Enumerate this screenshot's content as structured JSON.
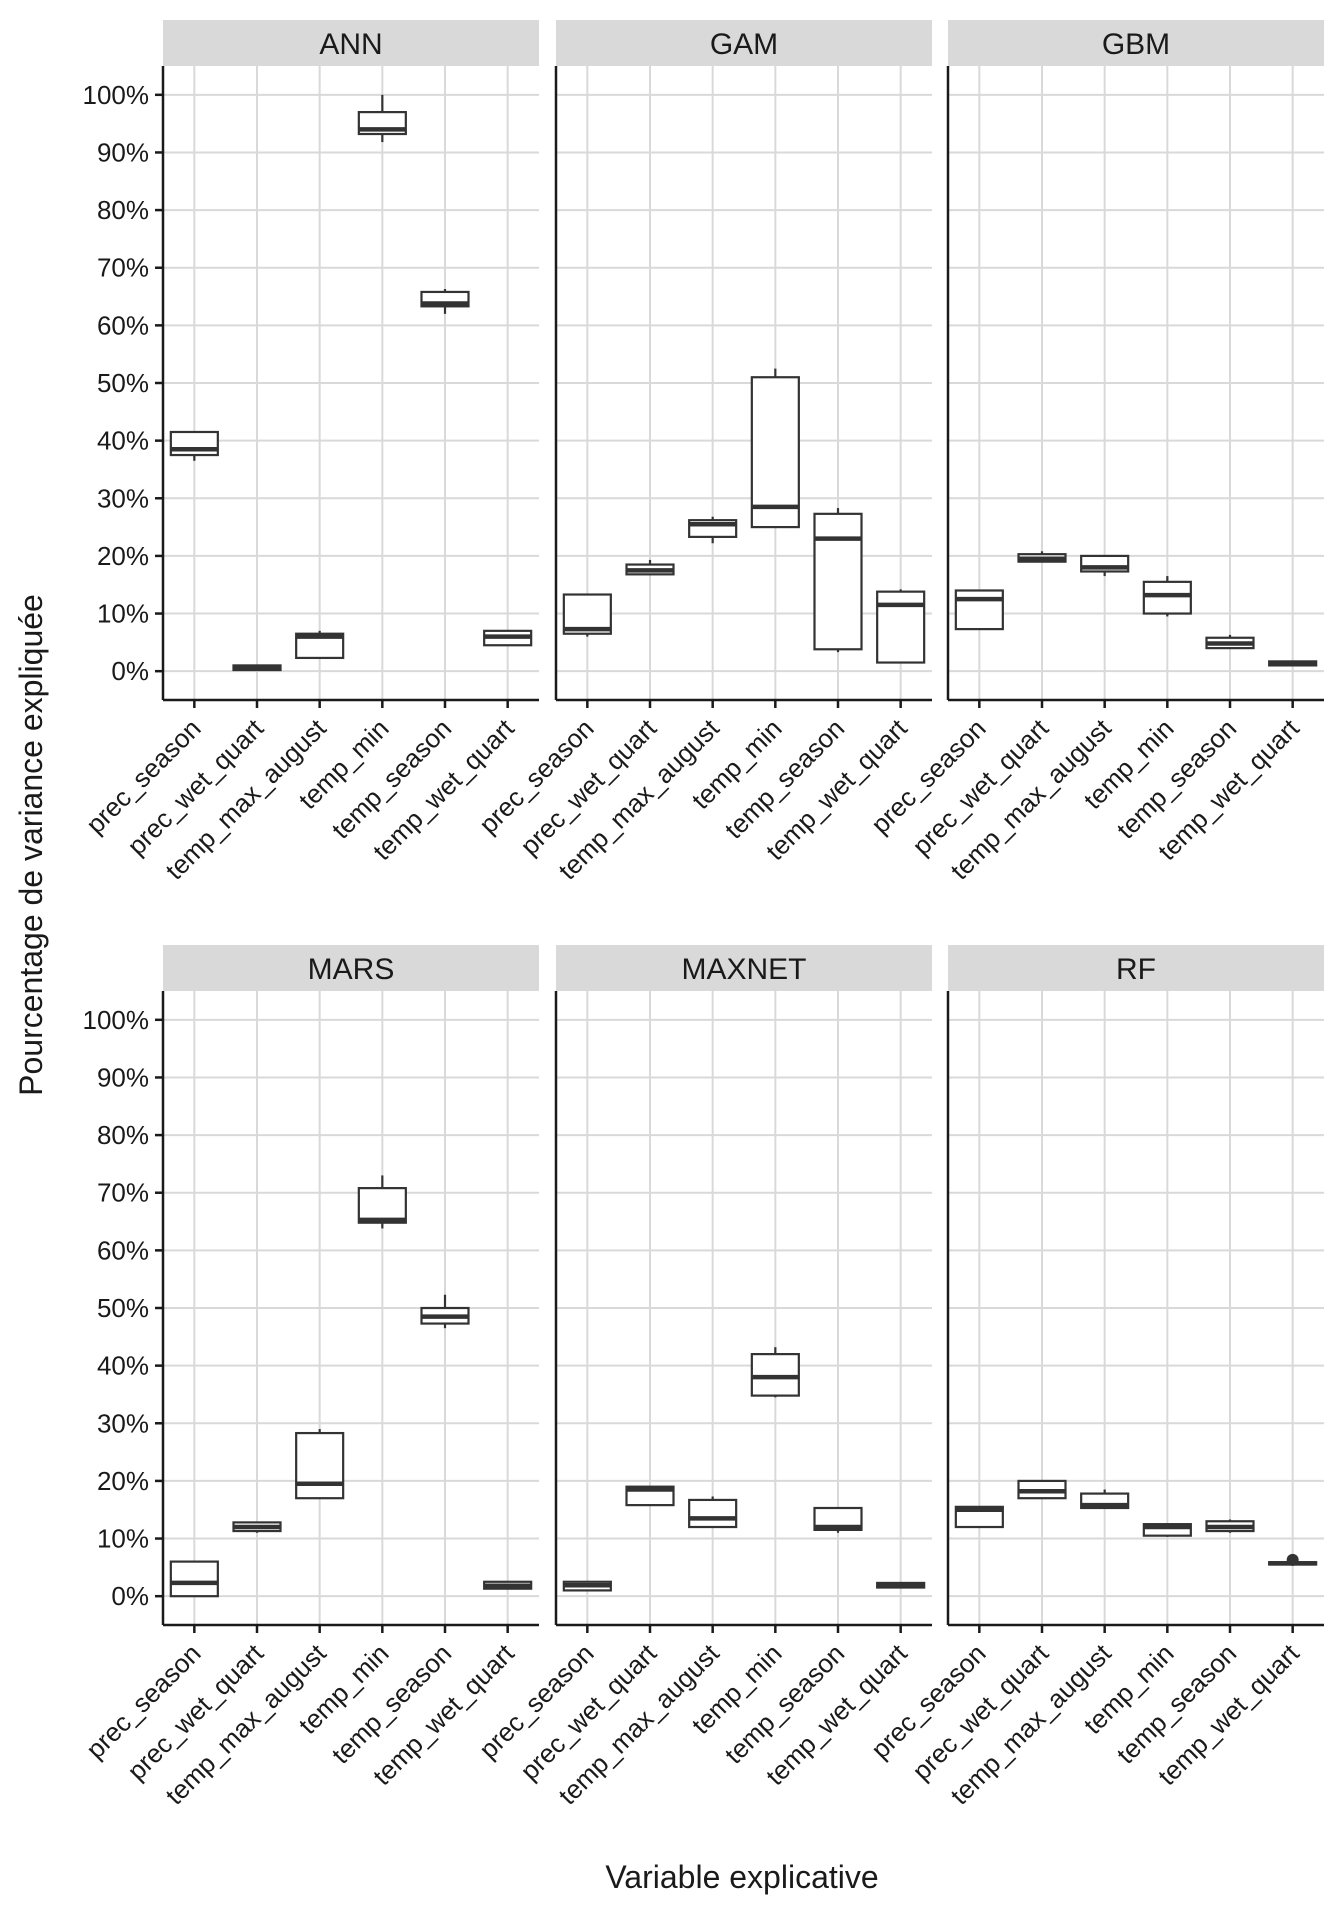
{
  "chart_data": {
    "type": "boxplot",
    "xlabel": "Variable explicative",
    "ylabel": "Pourcentage de variance expliquée",
    "ylim": [
      -5,
      105
    ],
    "yticks": [
      0,
      10,
      20,
      30,
      40,
      50,
      60,
      70,
      80,
      90,
      100
    ],
    "ytick_labels": [
      "0%",
      "10%",
      "20%",
      "30%",
      "40%",
      "50%",
      "60%",
      "70%",
      "80%",
      "90%",
      "100%"
    ],
    "categories": [
      "prec_season",
      "prec_wet_quart",
      "temp_max_august",
      "temp_min",
      "temp_season",
      "temp_wet_quart"
    ],
    "grid": true,
    "legend": "none",
    "panels": [
      {
        "name": "ANN",
        "boxes": [
          {
            "min": 36.5,
            "q1": 37.5,
            "median": 38.5,
            "q3": 41.5,
            "max": 41.5
          },
          {
            "min": 0.2,
            "q1": 0.2,
            "median": 0.5,
            "q3": 1.0,
            "max": 1.0
          },
          {
            "min": 2.3,
            "q1": 2.3,
            "median": 6.0,
            "q3": 6.5,
            "max": 7.0
          },
          {
            "min": 91.8,
            "q1": 93.2,
            "median": 94.0,
            "q3": 97.0,
            "max": 100.0
          },
          {
            "min": 62.0,
            "q1": 63.3,
            "median": 63.8,
            "q3": 65.8,
            "max": 66.3
          },
          {
            "min": 4.5,
            "q1": 4.5,
            "median": 6.0,
            "q3": 7.0,
            "max": 7.0
          }
        ]
      },
      {
        "name": "GAM",
        "boxes": [
          {
            "min": 6.0,
            "q1": 6.5,
            "median": 7.3,
            "q3": 13.3,
            "max": 13.3
          },
          {
            "min": 16.8,
            "q1": 16.8,
            "median": 17.5,
            "q3": 18.5,
            "max": 19.3
          },
          {
            "min": 22.2,
            "q1": 23.3,
            "median": 25.5,
            "q3": 26.2,
            "max": 26.8
          },
          {
            "min": 25.0,
            "q1": 25.0,
            "median": 28.5,
            "q3": 51.0,
            "max": 52.5
          },
          {
            "min": 3.3,
            "q1": 3.8,
            "median": 23.0,
            "q3": 27.3,
            "max": 28.3
          },
          {
            "min": 1.5,
            "q1": 1.5,
            "median": 11.5,
            "q3": 13.8,
            "max": 14.2
          }
        ]
      },
      {
        "name": "GBM",
        "boxes": [
          {
            "min": 7.3,
            "q1": 7.3,
            "median": 12.5,
            "q3": 14.0,
            "max": 14.0
          },
          {
            "min": 19.0,
            "q1": 19.0,
            "median": 19.5,
            "q3": 20.3,
            "max": 20.8
          },
          {
            "min": 16.5,
            "q1": 17.3,
            "median": 18.0,
            "q3": 20.0,
            "max": 20.0
          },
          {
            "min": 9.5,
            "q1": 10.0,
            "median": 13.2,
            "q3": 15.5,
            "max": 16.5
          },
          {
            "min": 4.0,
            "q1": 4.0,
            "median": 4.8,
            "q3": 5.8,
            "max": 6.3
          },
          {
            "min": 1.0,
            "q1": 1.0,
            "median": 1.3,
            "q3": 1.7,
            "max": 1.7
          }
        ]
      },
      {
        "name": "MARS",
        "boxes": [
          {
            "min": 0.0,
            "q1": 0.0,
            "median": 2.3,
            "q3": 6.0,
            "max": 6.0
          },
          {
            "min": 11.0,
            "q1": 11.3,
            "median": 12.0,
            "q3": 12.8,
            "max": 12.8
          },
          {
            "min": 17.0,
            "q1": 17.0,
            "median": 19.5,
            "q3": 28.3,
            "max": 29.0
          },
          {
            "min": 63.8,
            "q1": 64.8,
            "median": 65.3,
            "q3": 70.8,
            "max": 73.0
          },
          {
            "min": 46.5,
            "q1": 47.3,
            "median": 48.5,
            "q3": 50.0,
            "max": 52.3
          },
          {
            "min": 1.3,
            "q1": 1.3,
            "median": 1.8,
            "q3": 2.5,
            "max": 2.5
          }
        ]
      },
      {
        "name": "MAXNET",
        "boxes": [
          {
            "min": 1.0,
            "q1": 1.0,
            "median": 1.9,
            "q3": 2.5,
            "max": 2.5
          },
          {
            "min": 15.8,
            "q1": 15.8,
            "median": 18.5,
            "q3": 19.0,
            "max": 19.0
          },
          {
            "min": 12.0,
            "q1": 12.0,
            "median": 13.5,
            "q3": 16.7,
            "max": 17.3
          },
          {
            "min": 34.5,
            "q1": 34.8,
            "median": 38.0,
            "q3": 42.0,
            "max": 43.2
          },
          {
            "min": 11.0,
            "q1": 11.5,
            "median": 12.0,
            "q3": 15.3,
            "max": 15.3
          },
          {
            "min": 1.5,
            "q1": 1.5,
            "median": 2.0,
            "q3": 2.3,
            "max": 2.3
          }
        ]
      },
      {
        "name": "RF",
        "boxes": [
          {
            "min": 12.0,
            "q1": 12.0,
            "median": 15.0,
            "q3": 15.5,
            "max": 15.5
          },
          {
            "min": 17.0,
            "q1": 17.0,
            "median": 18.2,
            "q3": 20.0,
            "max": 20.0
          },
          {
            "min": 15.3,
            "q1": 15.3,
            "median": 15.8,
            "q3": 17.8,
            "max": 18.5
          },
          {
            "min": 10.3,
            "q1": 10.5,
            "median": 12.0,
            "q3": 12.5,
            "max": 12.5
          },
          {
            "min": 11.0,
            "q1": 11.3,
            "median": 12.0,
            "q3": 13.0,
            "max": 13.3
          },
          {
            "min": 5.5,
            "q1": 5.5,
            "median": 5.7,
            "q3": 5.9,
            "max": 5.9,
            "outliers": [
              6.3
            ]
          }
        ]
      }
    ]
  }
}
